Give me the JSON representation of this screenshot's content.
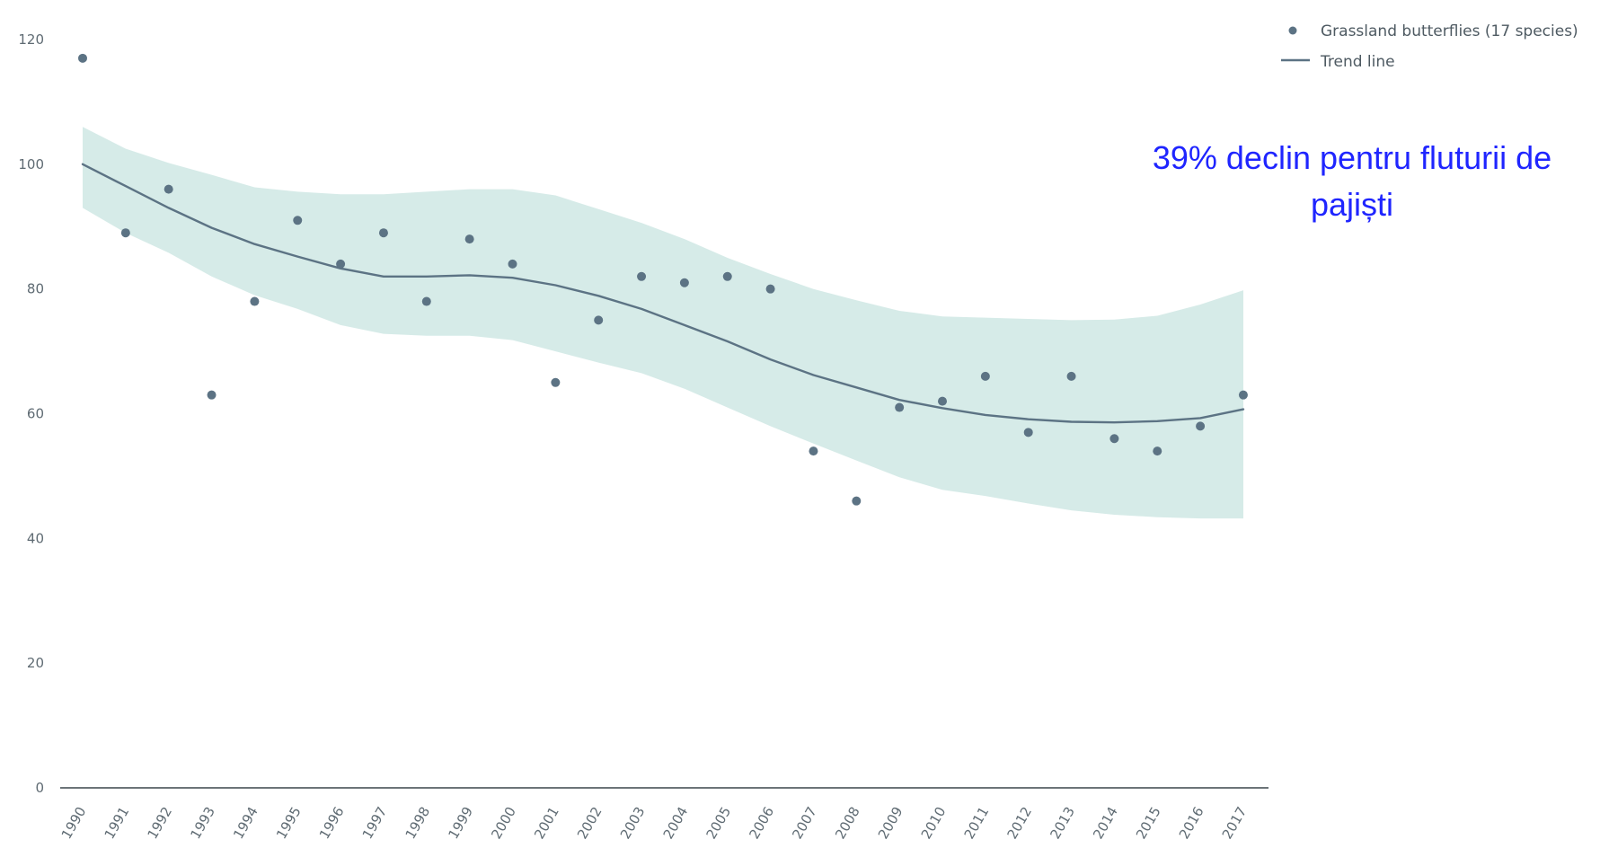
{
  "chart_data": {
    "type": "scatter",
    "title": "",
    "xlabel": "",
    "ylabel": "",
    "categories": [
      "1990",
      "1991",
      "1992",
      "1993",
      "1994",
      "1995",
      "1996",
      "1997",
      "1998",
      "1999",
      "2000",
      "2001",
      "2002",
      "2003",
      "2004",
      "2005",
      "2006",
      "2007",
      "2008",
      "2009",
      "2010",
      "2011",
      "2012",
      "2013",
      "2014",
      "2015",
      "2016",
      "2017"
    ],
    "ylim": [
      0,
      120
    ],
    "yticks": [
      "0",
      "20",
      "40",
      "60",
      "80",
      "100",
      "120"
    ],
    "series": [
      {
        "name": "Grassland butterflies (17 species)",
        "type": "scatter",
        "color": "#5c7384",
        "values": [
          117,
          89,
          96,
          63,
          78,
          91,
          84,
          89,
          78,
          88,
          84,
          65,
          75,
          82,
          81,
          82,
          80,
          54,
          46,
          61,
          62,
          66,
          57,
          66,
          56,
          54,
          58,
          63
        ]
      },
      {
        "name": "Trend line",
        "type": "line",
        "color": "#5c7384",
        "values": [
          100,
          96.5,
          93,
          89.8,
          87.2,
          85.2,
          83.3,
          82,
          82,
          82.2,
          81.8,
          80.6,
          78.9,
          76.8,
          74.2,
          71.6,
          68.7,
          66.2,
          64.2,
          62.2,
          60.9,
          59.8,
          59.1,
          58.7,
          58.6,
          58.8,
          59.3,
          60.7
        ]
      }
    ],
    "confidence_band": {
      "color": "#d6ebe8",
      "lower": [
        93,
        89,
        85.8,
        82,
        79,
        76.8,
        74.2,
        72.8,
        72.5,
        72.5,
        71.8,
        70,
        68.2,
        66.5,
        64,
        61,
        58,
        55.2,
        52.5,
        49.8,
        47.8,
        46.8,
        45.6,
        44.5,
        43.8,
        43.4,
        43.2,
        43.2
      ],
      "upper": [
        106,
        102.5,
        100.2,
        98.3,
        96.3,
        95.6,
        95.2,
        95.2,
        95.6,
        96,
        96,
        95,
        92.8,
        90.6,
        88,
        85,
        82.4,
        80,
        78.2,
        76.5,
        75.6,
        75.4,
        75.2,
        75,
        75.1,
        75.7,
        77.5,
        79.8
      ]
    },
    "grid": false,
    "legend": "top-right",
    "annotation": "39% declin pentru fluturii de pajiști"
  }
}
